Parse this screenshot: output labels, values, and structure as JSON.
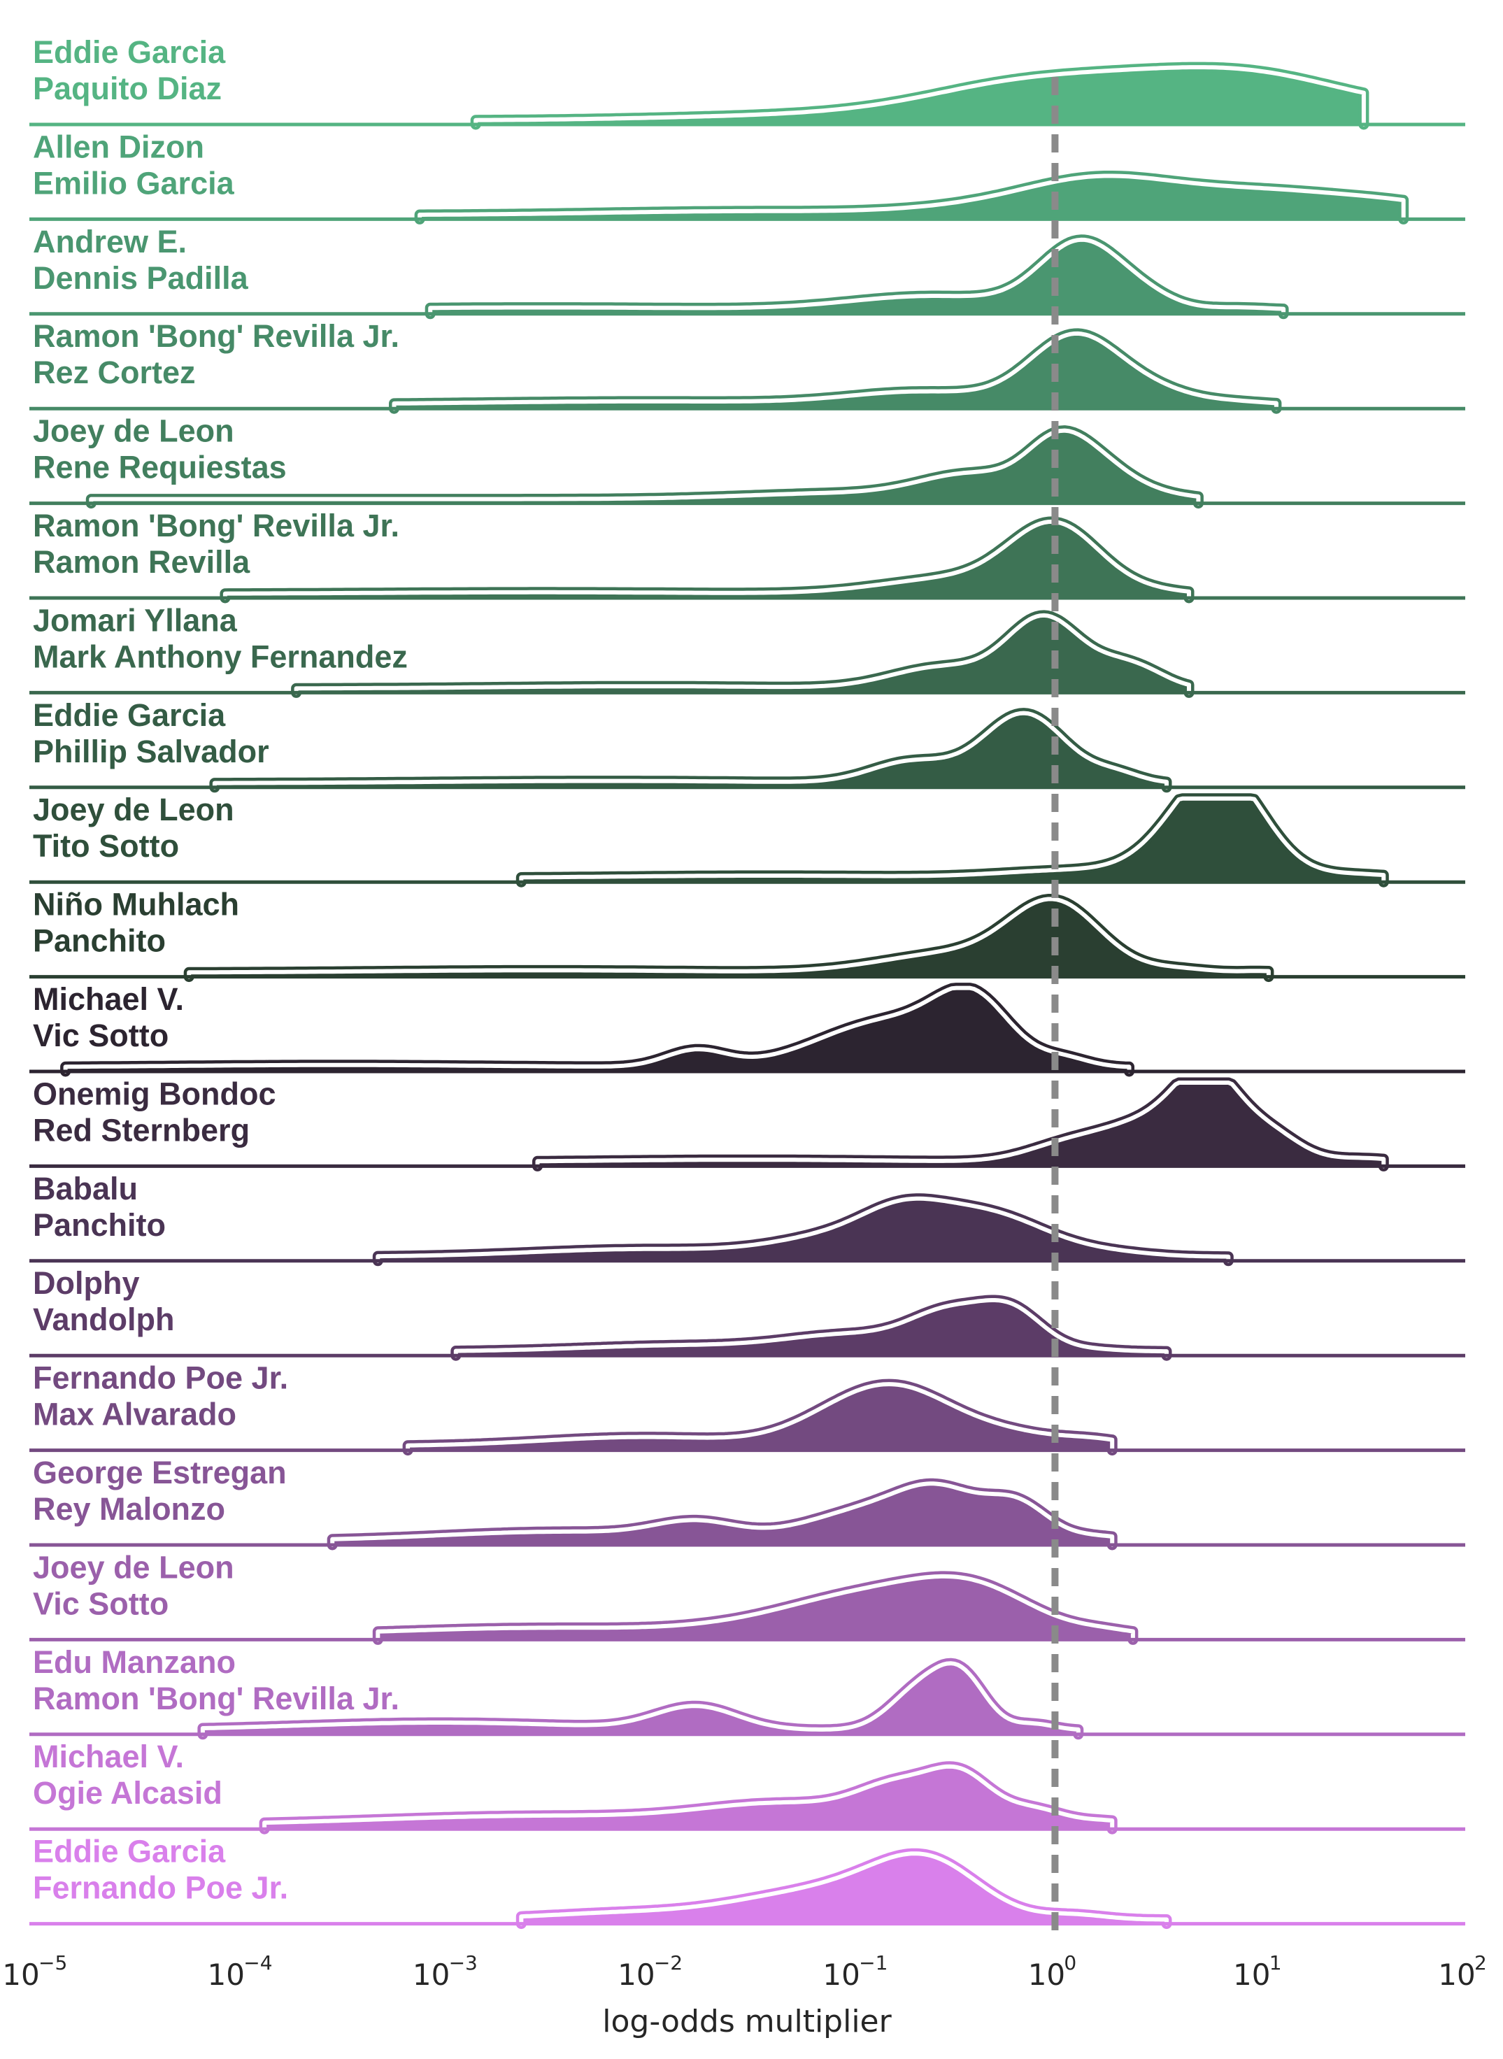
{
  "chart_data": {
    "type": "area",
    "subtype": "ridgeline density",
    "xlabel": "log-odds multiplier",
    "xscale": "log",
    "xlim": [
      1e-05,
      100
    ],
    "x_ticks": [
      {
        "base": "10",
        "exp": "−5"
      },
      {
        "base": "10",
        "exp": "−4"
      },
      {
        "base": "10",
        "exp": "−3"
      },
      {
        "base": "10",
        "exp": "−2"
      },
      {
        "base": "10",
        "exp": "−1"
      },
      {
        "base": "10",
        "exp": "0"
      },
      {
        "base": "10",
        "exp": "1"
      },
      {
        "base": "10",
        "exp": "2"
      }
    ],
    "reference_line": {
      "x": 1,
      "style": "dashed",
      "color": "#8a8a8a"
    },
    "grid": false,
    "rows": [
      {
        "label1": "Eddie Garcia",
        "label2": "Paquito Diaz",
        "color": "#55b483",
        "range": [
          0.0015,
          32
        ],
        "peaks": [
          [
            -1.6,
            0.03,
            0.55
          ],
          [
            -0.3,
            0.08,
            0.35
          ],
          [
            0.25,
            0.25,
            0.72
          ],
          [
            0.5,
            0.22,
            0.95
          ],
          [
            0.82,
            0.2,
            0.82
          ],
          [
            1.0,
            0.12,
            0.35
          ]
        ]
      },
      {
        "label1": "Allen Dizon",
        "label2": "Emilio Garcia",
        "color": "#4fa479",
        "range": [
          0.0008,
          50
        ],
        "peaks": [
          [
            -1.5,
            0.05,
            0.7
          ],
          [
            -0.3,
            0.1,
            0.4
          ],
          [
            0.2,
            0.35,
            0.35
          ],
          [
            1.0,
            0.33,
            0.55
          ],
          [
            1.7,
            0.05,
            0.25
          ]
        ]
      },
      {
        "label1": "Andrew E.",
        "label2": "Dennis Padilla",
        "color": "#4a9670",
        "range": [
          0.0009,
          13
        ],
        "peaks": [
          [
            -2.5,
            0.03,
            0.8
          ],
          [
            -0.6,
            0.18,
            0.4
          ],
          [
            0.13,
            0.88,
            0.2
          ],
          [
            0.45,
            0.12,
            0.15
          ],
          [
            0.9,
            0.03,
            0.15
          ]
        ]
      },
      {
        "label1": "Ramon 'Bong' Revilla Jr.",
        "label2": "Rez Cortez",
        "color": "#468a67",
        "range": [
          0.0006,
          12
        ],
        "peaks": [
          [
            -2.0,
            0.04,
            0.8
          ],
          [
            -0.65,
            0.16,
            0.35
          ],
          [
            0.1,
            0.9,
            0.22
          ],
          [
            0.5,
            0.15,
            0.2
          ],
          [
            0.9,
            0.03,
            0.15
          ]
        ]
      },
      {
        "label1": "Joey de Leon",
        "label2": "Rene Requiestas",
        "color": "#427f5e",
        "range": [
          2e-05,
          5
        ],
        "peaks": [
          [
            -1.0,
            0.08,
            0.5
          ],
          [
            -0.4,
            0.3,
            0.25
          ],
          [
            0.0,
            0.55,
            0.15
          ],
          [
            0.2,
            0.45,
            0.18
          ],
          [
            0.55,
            0.04,
            0.15
          ]
        ]
      },
      {
        "label1": "Ramon 'Bong' Revilla Jr.",
        "label2": "Ramon Revilla",
        "color": "#3e7456",
        "range": [
          9e-05,
          4.5
        ],
        "peaks": [
          [
            -2.5,
            0.02,
            0.8
          ],
          [
            -0.5,
            0.2,
            0.35
          ],
          [
            0.0,
            0.88,
            0.22
          ],
          [
            0.5,
            0.03,
            0.15
          ]
        ]
      },
      {
        "label1": "Jomari Yllana",
        "label2": "Mark Anthony Fernandez",
        "color": "#3a684e",
        "range": [
          0.0002,
          4.5
        ],
        "peaks": [
          [
            -2.0,
            0.03,
            0.7
          ],
          [
            -0.55,
            0.28,
            0.25
          ],
          [
            -0.05,
            0.92,
            0.18
          ],
          [
            0.35,
            0.3,
            0.15
          ],
          [
            0.5,
            0.03,
            0.1
          ]
        ]
      },
      {
        "label1": "Eddie Garcia",
        "label2": "Phillip Salvador",
        "color": "#345c45",
        "range": [
          8e-05,
          3.5
        ],
        "peaks": [
          [
            -2.2,
            0.03,
            0.8
          ],
          [
            -0.7,
            0.28,
            0.2
          ],
          [
            -0.15,
            0.92,
            0.2
          ],
          [
            0.3,
            0.12,
            0.12
          ]
        ]
      },
      {
        "label1": "Joey de Leon",
        "label2": "Tito Sotto",
        "color": "#2f4f3b",
        "range": [
          0.0025,
          40
        ],
        "peaks": [
          [
            -1.4,
            0.03,
            0.7
          ],
          [
            0.1,
            0.1,
            0.35
          ],
          [
            0.7,
            0.65,
            0.22
          ],
          [
            0.85,
            0.88,
            0.2
          ],
          [
            1.45,
            0.05,
            0.2
          ]
        ]
      },
      {
        "label1": "Niño Muhlach",
        "label2": "Panchito",
        "color": "#2a3f31",
        "range": [
          6e-05,
          11
        ],
        "peaks": [
          [
            -2.5,
            0.03,
            0.8
          ],
          [
            -0.5,
            0.25,
            0.35
          ],
          [
            0.0,
            0.88,
            0.22
          ],
          [
            0.6,
            0.05,
            0.15
          ],
          [
            1.0,
            0.02,
            0.1
          ]
        ]
      },
      {
        "label1": "Michael V.",
        "label2": "Vic Sotto",
        "color": "#2c2430",
        "range": [
          1.5e-05,
          2.3
        ],
        "peaks": [
          [
            -3.5,
            0.03,
            0.8
          ],
          [
            -1.75,
            0.22,
            0.15
          ],
          [
            -0.8,
            0.62,
            0.35
          ],
          [
            -0.4,
            0.72,
            0.18
          ],
          [
            0.05,
            0.1,
            0.12
          ]
        ]
      },
      {
        "label1": "Onemig Bondoc",
        "label2": "Red Sternberg",
        "color": "#3a2b40",
        "range": [
          0.003,
          40
        ],
        "peaks": [
          [
            -1.5,
            0.03,
            0.7
          ],
          [
            0.05,
            0.2,
            0.2
          ],
          [
            0.5,
            0.55,
            0.25
          ],
          [
            0.75,
            0.9,
            0.15
          ],
          [
            1.05,
            0.35,
            0.15
          ],
          [
            1.5,
            0.05,
            0.15
          ]
        ]
      },
      {
        "label1": "Babalu",
        "label2": "Panchito",
        "color": "#4a3454",
        "range": [
          0.0005,
          7
        ],
        "peaks": [
          [
            -2.0,
            0.1,
            0.55
          ],
          [
            -1.05,
            0.25,
            0.3
          ],
          [
            -0.75,
            0.35,
            0.2
          ],
          [
            -0.35,
            0.58,
            0.3
          ],
          [
            0.3,
            0.04,
            0.2
          ]
        ]
      },
      {
        "label1": "Dolphy",
        "label2": "Vandolph",
        "color": "#5c3c67",
        "range": [
          0.0012,
          3.5
        ],
        "peaks": [
          [
            -1.8,
            0.08,
            0.5
          ],
          [
            -1.0,
            0.2,
            0.3
          ],
          [
            -0.5,
            0.5,
            0.2
          ],
          [
            -0.2,
            0.45,
            0.15
          ],
          [
            0.15,
            0.03,
            0.15
          ]
        ]
      },
      {
        "label1": "Fernando Poe Jr.",
        "label2": "Max Alvarado",
        "color": "#734a80",
        "range": [
          0.0007,
          1.9
        ],
        "peaks": [
          [
            -2.0,
            0.12,
            0.5
          ],
          [
            -1.05,
            0.32,
            0.25
          ],
          [
            -0.75,
            0.58,
            0.25
          ],
          [
            -0.3,
            0.2,
            0.3
          ],
          [
            0.2,
            0.06,
            0.15
          ]
        ]
      },
      {
        "label1": "George Estregan",
        "label2": "Rey Malonzo",
        "color": "#875596",
        "range": [
          0.0003,
          1.9
        ],
        "peaks": [
          [
            -2.4,
            0.12,
            0.6
          ],
          [
            -1.75,
            0.2,
            0.2
          ],
          [
            -0.9,
            0.4,
            0.3
          ],
          [
            -0.55,
            0.52,
            0.2
          ],
          [
            -0.18,
            0.45,
            0.15
          ],
          [
            0.2,
            0.06,
            0.15
          ]
        ]
      },
      {
        "label1": "Joey de Leon",
        "label2": "Vic Sotto",
        "color": "#9b60ab",
        "range": [
          0.0005,
          2.4
        ],
        "peaks": [
          [
            -2.5,
            0.1,
            0.7
          ],
          [
            -1.3,
            0.15,
            0.4
          ],
          [
            -0.9,
            0.4,
            0.35
          ],
          [
            -0.4,
            0.58,
            0.3
          ],
          [
            0.25,
            0.05,
            0.15
          ]
        ]
      },
      {
        "label1": "Edu Manzano",
        "label2": "Ramon 'Bong' Revilla Jr.",
        "color": "#b06cc2",
        "range": [
          7e-05,
          1.3
        ],
        "peaks": [
          [
            -3.0,
            0.1,
            0.7
          ],
          [
            -1.75,
            0.3,
            0.2
          ],
          [
            -0.65,
            0.55,
            0.15
          ],
          [
            -0.45,
            0.6,
            0.12
          ],
          [
            -0.1,
            0.08,
            0.1
          ]
        ]
      },
      {
        "label1": "Michael V.",
        "label2": "Ogie Alcasid",
        "color": "#c576d6",
        "range": [
          0.00014,
          1.9
        ],
        "peaks": [
          [
            -2.5,
            0.12,
            0.8
          ],
          [
            -1.3,
            0.25,
            0.4
          ],
          [
            -0.75,
            0.45,
            0.2
          ],
          [
            -0.45,
            0.55,
            0.15
          ],
          [
            -0.1,
            0.2,
            0.15
          ],
          [
            0.25,
            0.05,
            0.12
          ]
        ]
      },
      {
        "label1": "Eddie Garcia",
        "label2": "Fernando Poe Jr.",
        "color": "#d980eb",
        "range": [
          0.0025,
          3.5
        ],
        "peaks": [
          [
            -2.0,
            0.1,
            0.45
          ],
          [
            -1.35,
            0.2,
            0.3
          ],
          [
            -0.9,
            0.35,
            0.3
          ],
          [
            -0.6,
            0.62,
            0.25
          ],
          [
            0.1,
            0.06,
            0.15
          ]
        ]
      }
    ]
  }
}
